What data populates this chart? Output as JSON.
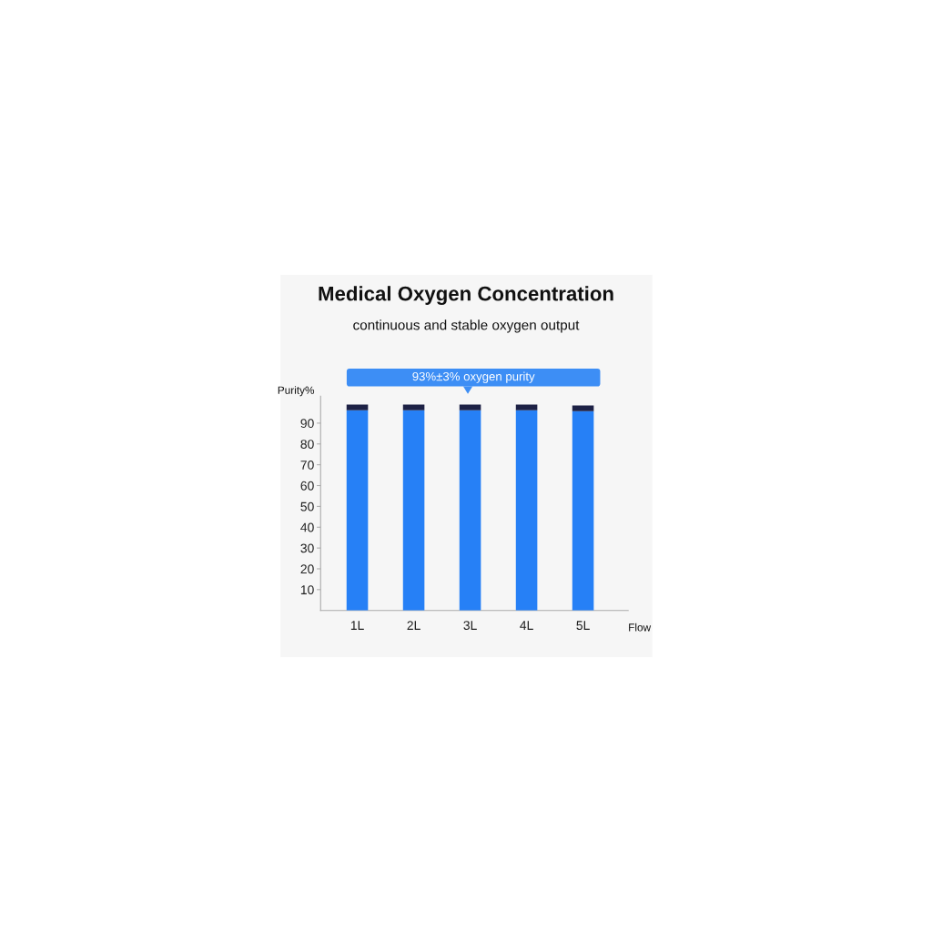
{
  "chart_data": {
    "type": "bar",
    "title": "Medical Oxygen Concentration",
    "subtitle": "continuous and stable oxygen output",
    "xlabel": "Flow",
    "ylabel": "Purity%",
    "categories": [
      "1L",
      "2L",
      "3L",
      "4L",
      "5L"
    ],
    "stacked": true,
    "series": [
      {
        "color": "#2680f6",
        "values": [
          96.2,
          96.2,
          96.2,
          96.2,
          95.8
        ]
      },
      {
        "color": "#1d2145",
        "values": [
          2.7,
          2.7,
          2.7,
          2.7,
          2.7
        ]
      }
    ],
    "ylim": [
      0,
      103
    ],
    "yticks": [
      10,
      20,
      30,
      40,
      50,
      60,
      70,
      80,
      90
    ],
    "annotations": [
      "93%±3% oxygen purity"
    ]
  }
}
